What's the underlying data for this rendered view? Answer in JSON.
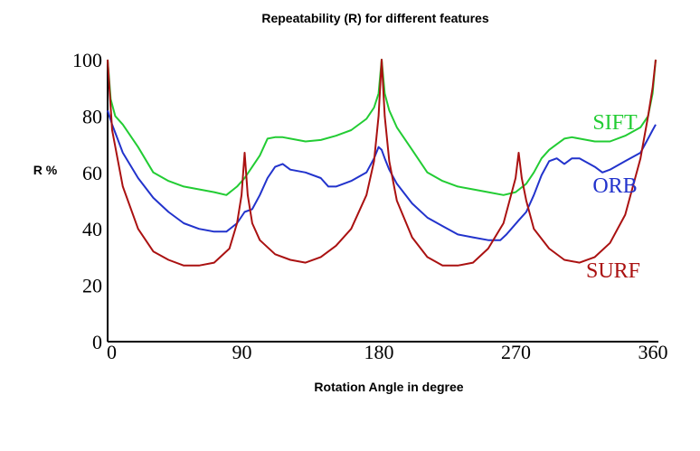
{
  "chart_data": {
    "type": "line",
    "title": "Repeatability (R) for different features",
    "xlabel": "Rotation Angle in degree",
    "ylabel": "R %",
    "xlim": [
      0,
      360
    ],
    "ylim": [
      0,
      100
    ],
    "xticks": [
      0,
      90,
      180,
      270,
      360
    ],
    "yticks": [
      0,
      20,
      40,
      60,
      80,
      100
    ],
    "grid": false,
    "series": [
      {
        "name": "SIFT",
        "color": "#22cc33",
        "x": [
          0,
          2,
          5,
          10,
          20,
          30,
          40,
          50,
          60,
          70,
          78,
          85,
          90,
          95,
          100,
          105,
          110,
          115,
          120,
          130,
          140,
          150,
          160,
          170,
          175,
          178,
          180,
          182,
          185,
          190,
          200,
          210,
          220,
          230,
          240,
          250,
          260,
          268,
          275,
          280,
          285,
          290,
          295,
          300,
          305,
          310,
          320,
          330,
          340,
          350,
          355,
          358,
          360
        ],
        "values": [
          100,
          86,
          80,
          77,
          69,
          60,
          57,
          55,
          54,
          53,
          52,
          55,
          58,
          62,
          66,
          72,
          72.5,
          72.5,
          72,
          71,
          71.5,
          73,
          75,
          79,
          83,
          88,
          100,
          88,
          82,
          76,
          68,
          60,
          57,
          55,
          54,
          53,
          52,
          53,
          56,
          60,
          65,
          68,
          70,
          72,
          72.5,
          72,
          71,
          71,
          73,
          76,
          80,
          88,
          100
        ]
      },
      {
        "name": "ORB",
        "color": "#2233cc",
        "x": [
          0,
          3,
          10,
          20,
          30,
          40,
          50,
          60,
          70,
          78,
          85,
          90,
          95,
          100,
          105,
          110,
          115,
          120,
          130,
          140,
          145,
          150,
          160,
          170,
          175,
          178,
          180,
          182,
          185,
          190,
          200,
          210,
          220,
          230,
          240,
          250,
          258,
          262,
          270,
          275,
          280,
          285,
          290,
          295,
          300,
          305,
          310,
          320,
          325,
          330,
          340,
          350,
          355,
          358,
          360
        ],
        "values": [
          82,
          77,
          67,
          58,
          51,
          46,
          42,
          40,
          39,
          39,
          42,
          46,
          47,
          52,
          58,
          62,
          63,
          61,
          60,
          58,
          55,
          55,
          57,
          60,
          65,
          69,
          68,
          65,
          61,
          56,
          49,
          44,
          41,
          38,
          37,
          36,
          36,
          38,
          43,
          46,
          52,
          59,
          64,
          65,
          63,
          65,
          65,
          62,
          60,
          61,
          64,
          67,
          72,
          75,
          77
        ]
      },
      {
        "name": "SURF",
        "color": "#aa1111",
        "x": [
          0,
          3,
          10,
          20,
          30,
          40,
          50,
          60,
          70,
          80,
          85,
          88,
          90,
          92,
          95,
          100,
          110,
          120,
          130,
          140,
          150,
          160,
          170,
          175,
          178,
          180,
          182,
          185,
          190,
          200,
          210,
          220,
          230,
          240,
          250,
          260,
          265,
          268,
          270,
          272,
          275,
          280,
          290,
          300,
          310,
          320,
          330,
          340,
          350,
          355,
          358,
          360
        ],
        "values": [
          100,
          75,
          55,
          40,
          32,
          29,
          27,
          27,
          28,
          33,
          42,
          52,
          67,
          52,
          42,
          36,
          31,
          29,
          28,
          30,
          34,
          40,
          52,
          64,
          80,
          100,
          80,
          64,
          50,
          37,
          30,
          27,
          27,
          28,
          33,
          42,
          52,
          58,
          67,
          58,
          50,
          40,
          33,
          29,
          28,
          30,
          35,
          45,
          65,
          80,
          90,
          100
        ]
      }
    ]
  }
}
